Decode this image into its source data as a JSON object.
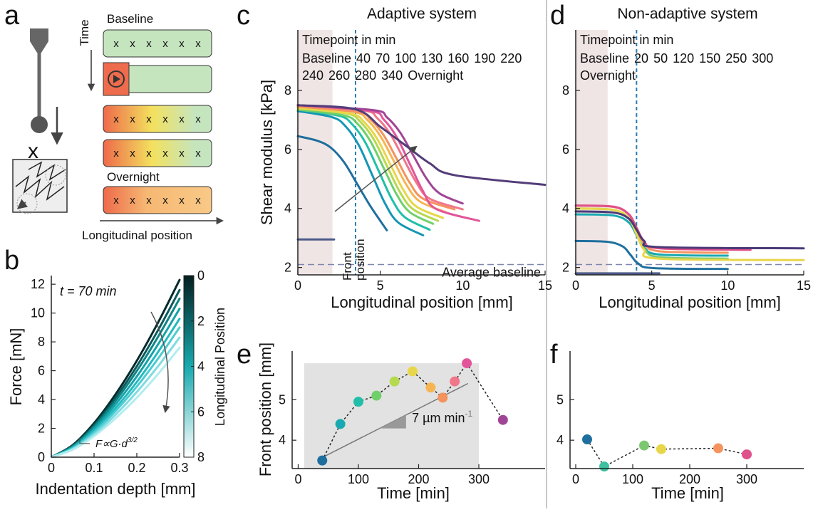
{
  "panel_labels": [
    "a",
    "b",
    "c",
    "d",
    "e",
    "f"
  ],
  "diagram": {
    "time_label": "Time",
    "rows": [
      "Baseline",
      "Overnight"
    ],
    "sample_mark": "x",
    "probe_mark": "x",
    "position_label": "Longitudinal position"
  },
  "chart_data": [
    {
      "type": "line",
      "xlabel": "Indentation depth [mm]",
      "ylabel": "Force [mN]",
      "annotation": "t = 70 min",
      "formula": [
        "F∝G·d",
        "3/2"
      ],
      "xlim": [
        0,
        0.3
      ],
      "xticks": [
        0,
        0.1,
        0.2,
        0.3
      ],
      "ylim": [
        0,
        12.6
      ],
      "yticks": [
        0,
        2,
        4,
        6,
        8,
        10,
        12
      ],
      "colorbar": {
        "label": "Longitudinal Position",
        "clim": [
          0,
          8
        ],
        "ticks": [
          0,
          2,
          4,
          6,
          8
        ],
        "colors": [
          "#051f20",
          "#17a9ae",
          "#ffffff"
        ]
      },
      "x": [
        0,
        0.05,
        0.1,
        0.15,
        0.2,
        0.25,
        0.3
      ],
      "series": [
        {
          "color": "#062a2b",
          "values": [
            0,
            0.84,
            2.36,
            4.35,
            6.69,
            9.36,
            12.3
          ]
        },
        {
          "color": "#0b5a5c",
          "values": [
            0,
            0.79,
            2.23,
            4.11,
            6.31,
            8.83,
            11.6
          ]
        },
        {
          "color": "#0e8587",
          "values": [
            0,
            0.75,
            2.11,
            3.89,
            5.98,
            8.37,
            11.0
          ]
        },
        {
          "color": "#14a3a8",
          "values": [
            0,
            0.7,
            1.98,
            3.65,
            5.6,
            7.84,
            10.3
          ]
        },
        {
          "color": "#22bac1",
          "values": [
            0,
            0.65,
            1.84,
            3.4,
            5.22,
            7.31,
            9.6
          ]
        },
        {
          "color": "#4ccbd2",
          "values": [
            0,
            0.61,
            1.73,
            3.19,
            4.9,
            6.85,
            9.0
          ]
        },
        {
          "color": "#7fdce1",
          "values": [
            0,
            0.56,
            1.59,
            2.94,
            4.52,
            6.32,
            8.3
          ]
        },
        {
          "color": "#b2ecef",
          "values": [
            0,
            0.52,
            1.46,
            2.69,
            4.13,
            5.78,
            7.6
          ]
        }
      ]
    },
    {
      "type": "line",
      "title": "Adaptive system",
      "xlabel": "Longitudinal position [mm]",
      "ylabel": "Shear modulus [kPa]",
      "legend_title": "Timepoint in min",
      "shade_x": [
        0,
        2.1
      ],
      "front_x": 3.5,
      "front_label": [
        "Front",
        "position"
      ],
      "baseline_y": 2.1,
      "baseline_label": "Average baseline",
      "xlim": [
        0,
        15
      ],
      "xticks": [
        0,
        5,
        10,
        15
      ],
      "ylim": [
        1.75,
        10.05
      ],
      "yticks": [
        2,
        4,
        6,
        8
      ],
      "series": [
        {
          "name": "Baseline",
          "color": "#4b5a8a",
          "x": [
            0,
            2.2
          ],
          "values": [
            2.95,
            2.95
          ]
        },
        {
          "name": "40",
          "color": "#1f6f9e",
          "x": [
            0,
            1.2,
            2.0,
            2.8,
            3.6,
            4.4,
            5.4
          ],
          "values": [
            6.45,
            6.29,
            6.06,
            5.57,
            4.83,
            4.08,
            3.26
          ]
        },
        {
          "name": "70",
          "color": "#1596b4",
          "x": [
            0,
            2.1,
            2.9,
            3.7,
            4.5,
            5.3,
            6.1,
            7.6
          ],
          "values": [
            7.3,
            7.09,
            6.78,
            6.14,
            5.15,
            4.16,
            3.52,
            3.09
          ]
        },
        {
          "name": "100",
          "color": "#22bfa8",
          "x": [
            0,
            2.5,
            3.3,
            4.1,
            4.9,
            5.7,
            6.5,
            8.0
          ],
          "values": [
            7.35,
            7.14,
            6.85,
            6.23,
            5.28,
            4.32,
            3.7,
            3.28
          ]
        },
        {
          "name": "130",
          "color": "#6fcf6a",
          "x": [
            0,
            2.8,
            3.6,
            4.4,
            5.2,
            6.0,
            6.8,
            8.2
          ],
          "values": [
            7.35,
            7.15,
            6.88,
            6.28,
            5.38,
            4.47,
            3.87,
            3.48
          ]
        },
        {
          "name": "160",
          "color": "#b5d94f",
          "x": [
            0,
            3.0,
            3.8,
            4.6,
            5.4,
            6.2,
            7.0,
            8.5
          ],
          "values": [
            7.4,
            7.21,
            6.93,
            6.35,
            5.45,
            4.55,
            3.97,
            3.58
          ]
        },
        {
          "name": "190",
          "color": "#e8d64a",
          "x": [
            0,
            3.2,
            4.0,
            4.8,
            5.6,
            6.4,
            7.2,
            8.8
          ],
          "values": [
            7.4,
            7.21,
            6.94,
            6.37,
            5.5,
            4.63,
            4.06,
            3.68
          ]
        },
        {
          "name": "220",
          "color": "#f6b552",
          "x": [
            0,
            3.4,
            4.2,
            5.0,
            5.8,
            6.6,
            7.4,
            9.0
          ],
          "values": [
            7.45,
            7.27,
            7.01,
            6.46,
            5.63,
            4.79,
            4.24,
            3.87
          ]
        },
        {
          "name": "240",
          "color": "#f5935e",
          "x": [
            0,
            3.6,
            4.4,
            5.2,
            6.0,
            6.8,
            7.6,
            9.5
          ],
          "values": [
            7.45,
            7.27,
            7.02,
            6.49,
            5.68,
            4.86,
            4.33,
            3.97
          ]
        },
        {
          "name": "260",
          "color": "#f0768a",
          "x": [
            0,
            4.0,
            4.8,
            5.6,
            6.4,
            7.2,
            8.0,
            10.0
          ],
          "values": [
            7.5,
            7.32,
            7.07,
            6.53,
            5.7,
            4.87,
            4.33,
            3.97
          ]
        },
        {
          "name": "280",
          "color": "#e2559a",
          "x": [
            0,
            4.4,
            5.2,
            6.0,
            6.8,
            7.6,
            8.4,
            11.0
          ],
          "values": [
            7.5,
            7.3,
            7.02,
            6.42,
            5.5,
            4.58,
            3.98,
            3.58
          ]
        },
        {
          "name": "340",
          "color": "#a04596",
          "x": [
            0,
            4.6,
            5.4,
            6.2,
            7.0,
            7.8,
            8.6,
            10.0
          ],
          "values": [
            7.5,
            7.33,
            7.09,
            6.58,
            5.8,
            5.02,
            4.51,
            4.17
          ]
        },
        {
          "name": "Overnight",
          "color": "#533d78",
          "x": [
            0,
            3.5,
            5.0,
            6.5,
            8.0,
            9.5,
            15
          ],
          "values": [
            7.5,
            7.36,
            6.77,
            6.15,
            5.53,
            5.13,
            4.8
          ]
        }
      ]
    },
    {
      "type": "line",
      "title": "Non-adaptive system",
      "xlabel": "Longitudinal position [mm]",
      "legend_title": "Timepoint in min",
      "shade_x": [
        0,
        2.1
      ],
      "front_x": 4.0,
      "baseline_y": 2.1,
      "xlim": [
        0,
        15
      ],
      "xticks": [
        0,
        5,
        10,
        15
      ],
      "ylim": [
        1.75,
        10.05
      ],
      "yticks": [
        2,
        4,
        6,
        8
      ],
      "series": [
        {
          "name": "Baseline",
          "color": "#4b5a8a",
          "x": [
            0,
            5.5
          ],
          "values": [
            1.8,
            1.8
          ]
        },
        {
          "name": "20",
          "color": "#1f6f9e",
          "x": [
            0,
            2.1,
            3.1,
            3.6,
            4.1,
            5.1,
            10
          ],
          "values": [
            2.9,
            2.87,
            2.71,
            2.43,
            2.14,
            1.98,
            1.95
          ]
        },
        {
          "name": "50",
          "color": "#1aa9b0",
          "x": [
            0,
            2.5,
            3.5,
            4,
            4.5,
            5.5,
            10
          ],
          "values": [
            3.8,
            3.76,
            3.52,
            3.1,
            2.68,
            2.44,
            2.4
          ]
        },
        {
          "name": "120",
          "color": "#7cc870",
          "x": [
            0,
            2.5,
            3.5,
            4,
            4.5,
            5.5,
            10
          ],
          "values": [
            4.0,
            3.95,
            3.66,
            3.15,
            2.64,
            2.35,
            2.3
          ]
        },
        {
          "name": "150",
          "color": "#e8d64a",
          "x": [
            0,
            2.5,
            3.5,
            4,
            4.5,
            5.5,
            15
          ],
          "values": [
            4.0,
            3.95,
            3.65,
            3.13,
            2.6,
            2.3,
            2.25
          ]
        },
        {
          "name": "250",
          "color": "#f5935e",
          "x": [
            0,
            2.5,
            3.5,
            4,
            4.5,
            5.5,
            10
          ],
          "values": [
            4.1,
            4.05,
            3.78,
            3.3,
            2.82,
            2.55,
            2.5
          ]
        },
        {
          "name": "300",
          "color": "#e0508a",
          "x": [
            0,
            2.5,
            3.5,
            4,
            4.5,
            5.5,
            11.5
          ],
          "values": [
            4.1,
            4.06,
            3.8,
            3.35,
            2.9,
            2.65,
            2.6
          ]
        },
        {
          "name": "Overnight",
          "color": "#4a3a78",
          "x": [
            0,
            2.5,
            3.5,
            4,
            4.5,
            5.5,
            15
          ],
          "values": [
            3.9,
            3.86,
            3.65,
            3.28,
            2.9,
            2.69,
            2.65
          ]
        }
      ]
    },
    {
      "type": "scatter",
      "linestyle": "dashed",
      "xlabel": "Time [min]",
      "ylabel": "Front position [mm]",
      "shade_x": [
        10,
        300
      ],
      "shade_y": [
        3.3,
        5.9
      ],
      "xlim": [
        -10,
        410
      ],
      "xticks": [
        0,
        100,
        200,
        300
      ],
      "ylim": [
        3.3,
        6.2
      ],
      "yticks": [
        4,
        5
      ],
      "x": [
        40,
        70,
        100,
        130,
        160,
        190,
        220,
        240,
        260,
        280,
        340
      ],
      "values": [
        3.5,
        4.4,
        4.95,
        5.1,
        5.45,
        5.7,
        5.3,
        5.05,
        5.45,
        5.9,
        4.5
      ],
      "colors": [
        "#1f6f9e",
        "#1aa9b0",
        "#22bfa8",
        "#6fcf6a",
        "#b5d94f",
        "#e8d64a",
        "#f6b552",
        "#f5935e",
        "#f0768a",
        "#e2559a",
        "#a04596"
      ],
      "trend": {
        "x": [
          37,
          282
        ],
        "values": [
          3.55,
          5.4
        ],
        "label": "7 µm min",
        "label_sup": "-1"
      }
    },
    {
      "type": "scatter",
      "linestyle": "dashed",
      "xlabel": "Time [min]",
      "xlim": [
        -10,
        400
      ],
      "xticks": [
        0,
        100,
        200,
        300
      ],
      "ylim": [
        3.3,
        6.2
      ],
      "yticks": [
        4,
        5
      ],
      "x": [
        20,
        50,
        120,
        150,
        250,
        300
      ],
      "values": [
        4.02,
        3.35,
        3.87,
        3.78,
        3.8,
        3.65
      ],
      "colors": [
        "#1f6f9e",
        "#3cc0a0",
        "#7cc870",
        "#e8d64a",
        "#f5935e",
        "#e0508a"
      ]
    }
  ]
}
